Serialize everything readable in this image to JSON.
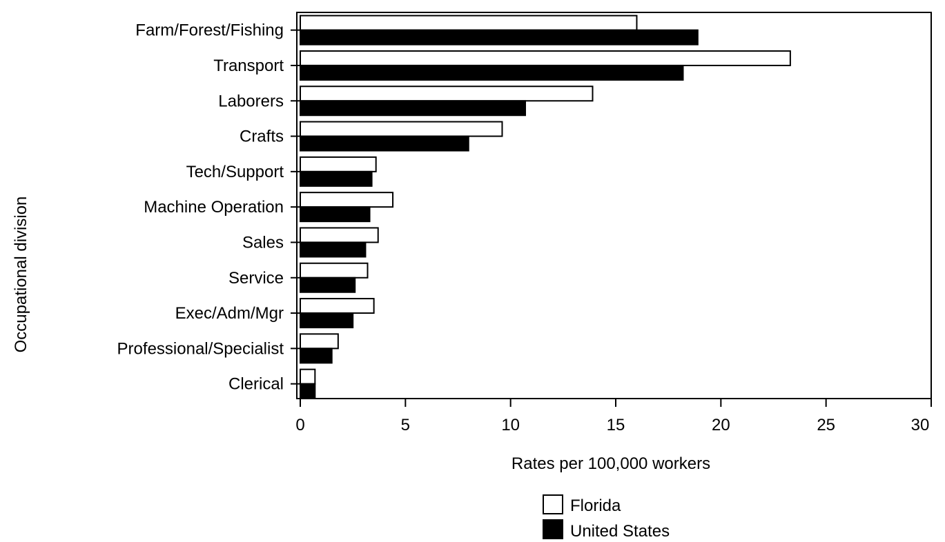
{
  "chart_data": {
    "type": "bar",
    "orientation": "horizontal",
    "categories": [
      "Farm/Forest/Fishing",
      "Transport",
      "Laborers",
      "Crafts",
      "Tech/Support",
      "Machine Operation",
      "Sales",
      "Service",
      "Exec/Adm/Mgr",
      "Professional/Specialist",
      "Clerical"
    ],
    "series": [
      {
        "name": "Florida",
        "color": "#ffffff",
        "values": [
          16.0,
          23.3,
          13.9,
          9.6,
          3.6,
          4.4,
          3.7,
          3.2,
          3.5,
          1.8,
          0.7
        ]
      },
      {
        "name": "United States",
        "color": "#000000",
        "values": [
          18.9,
          18.2,
          10.7,
          8.0,
          3.4,
          3.3,
          3.1,
          2.6,
          2.5,
          1.5,
          0.7
        ]
      }
    ],
    "xlabel": "Rates per 100,000 workers",
    "ylabel": "Occupational division",
    "xlim": [
      0,
      30
    ],
    "xticks": [
      0,
      5,
      10,
      15,
      20,
      25,
      30
    ],
    "grid": false,
    "legend_position": "bottom"
  }
}
